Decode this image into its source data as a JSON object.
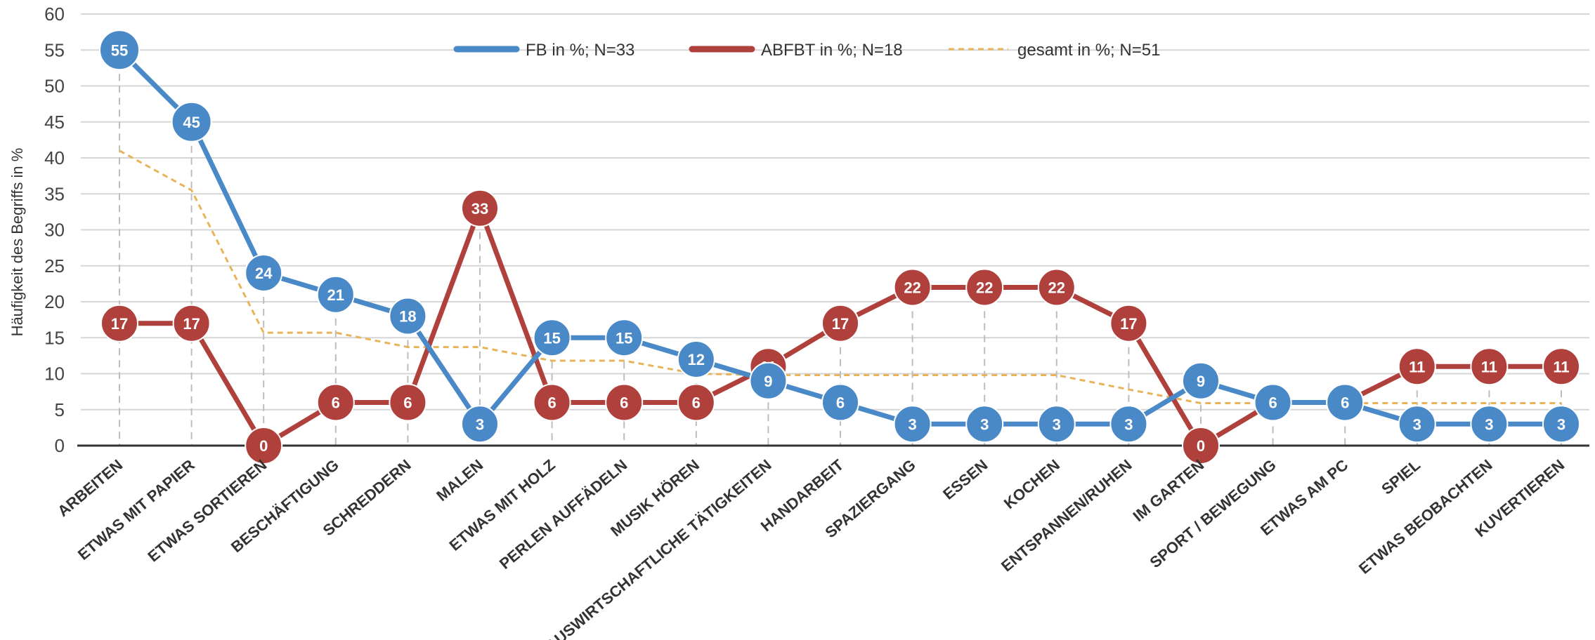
{
  "chart_data": {
    "type": "line",
    "title": "",
    "xlabel": "",
    "ylabel": "Häufigkeit des Begriffs in %",
    "ylim": [
      0,
      60
    ],
    "yticks": [
      0,
      5,
      10,
      15,
      20,
      25,
      30,
      35,
      40,
      45,
      50,
      55,
      60
    ],
    "grid": true,
    "legend_position": "top-center",
    "categories": [
      "ARBEITEN",
      "ETWAS MIT PAPIER",
      "ETWAS SORTIEREN",
      "BESCHÄFTIGUNG",
      "SCHREDDERN",
      "MALEN",
      "ETWAS MIT HOLZ",
      "PERLEN AUFFÄDELN",
      "MUSIK HÖREN",
      "HAUSWIRTSCHAFTLICHE TÄTIGKEITEN",
      "HANDARBEIT",
      "SPAZIERGANG",
      "ESSEN",
      "KOCHEN",
      "ENTSPANNEN/RUHEN",
      "IM GARTEN",
      "SPORT / BEWEGUNG",
      "ETWAS AM PC",
      "SPIEL",
      "ETWAS BEOBACHTEN",
      "KUVERTIEREN"
    ],
    "series": [
      {
        "name": "FB in %; N=33",
        "color": "#4a89c8",
        "style": "solid-markers",
        "values": [
          55,
          45,
          24,
          21,
          18,
          3,
          15,
          15,
          12,
          9,
          6,
          3,
          3,
          3,
          3,
          9,
          6,
          6,
          3,
          3,
          3
        ]
      },
      {
        "name": "ABFBT in %; N=18",
        "color": "#b0403c",
        "style": "solid-markers",
        "values": [
          17,
          17,
          0,
          6,
          6,
          33,
          6,
          6,
          6,
          11,
          17,
          22,
          22,
          22,
          17,
          0,
          6,
          6,
          11,
          11,
          11
        ]
      },
      {
        "name": "gesamt in %; N=51",
        "color": "#e8b45a",
        "style": "dashed",
        "values": [
          41,
          35.5,
          15.7,
          15.7,
          13.7,
          13.7,
          11.8,
          11.8,
          10,
          9.8,
          9.8,
          9.8,
          9.8,
          9.8,
          7.8,
          5.9,
          5.9,
          5.9,
          5.9,
          5.9,
          5.9
        ]
      }
    ]
  }
}
